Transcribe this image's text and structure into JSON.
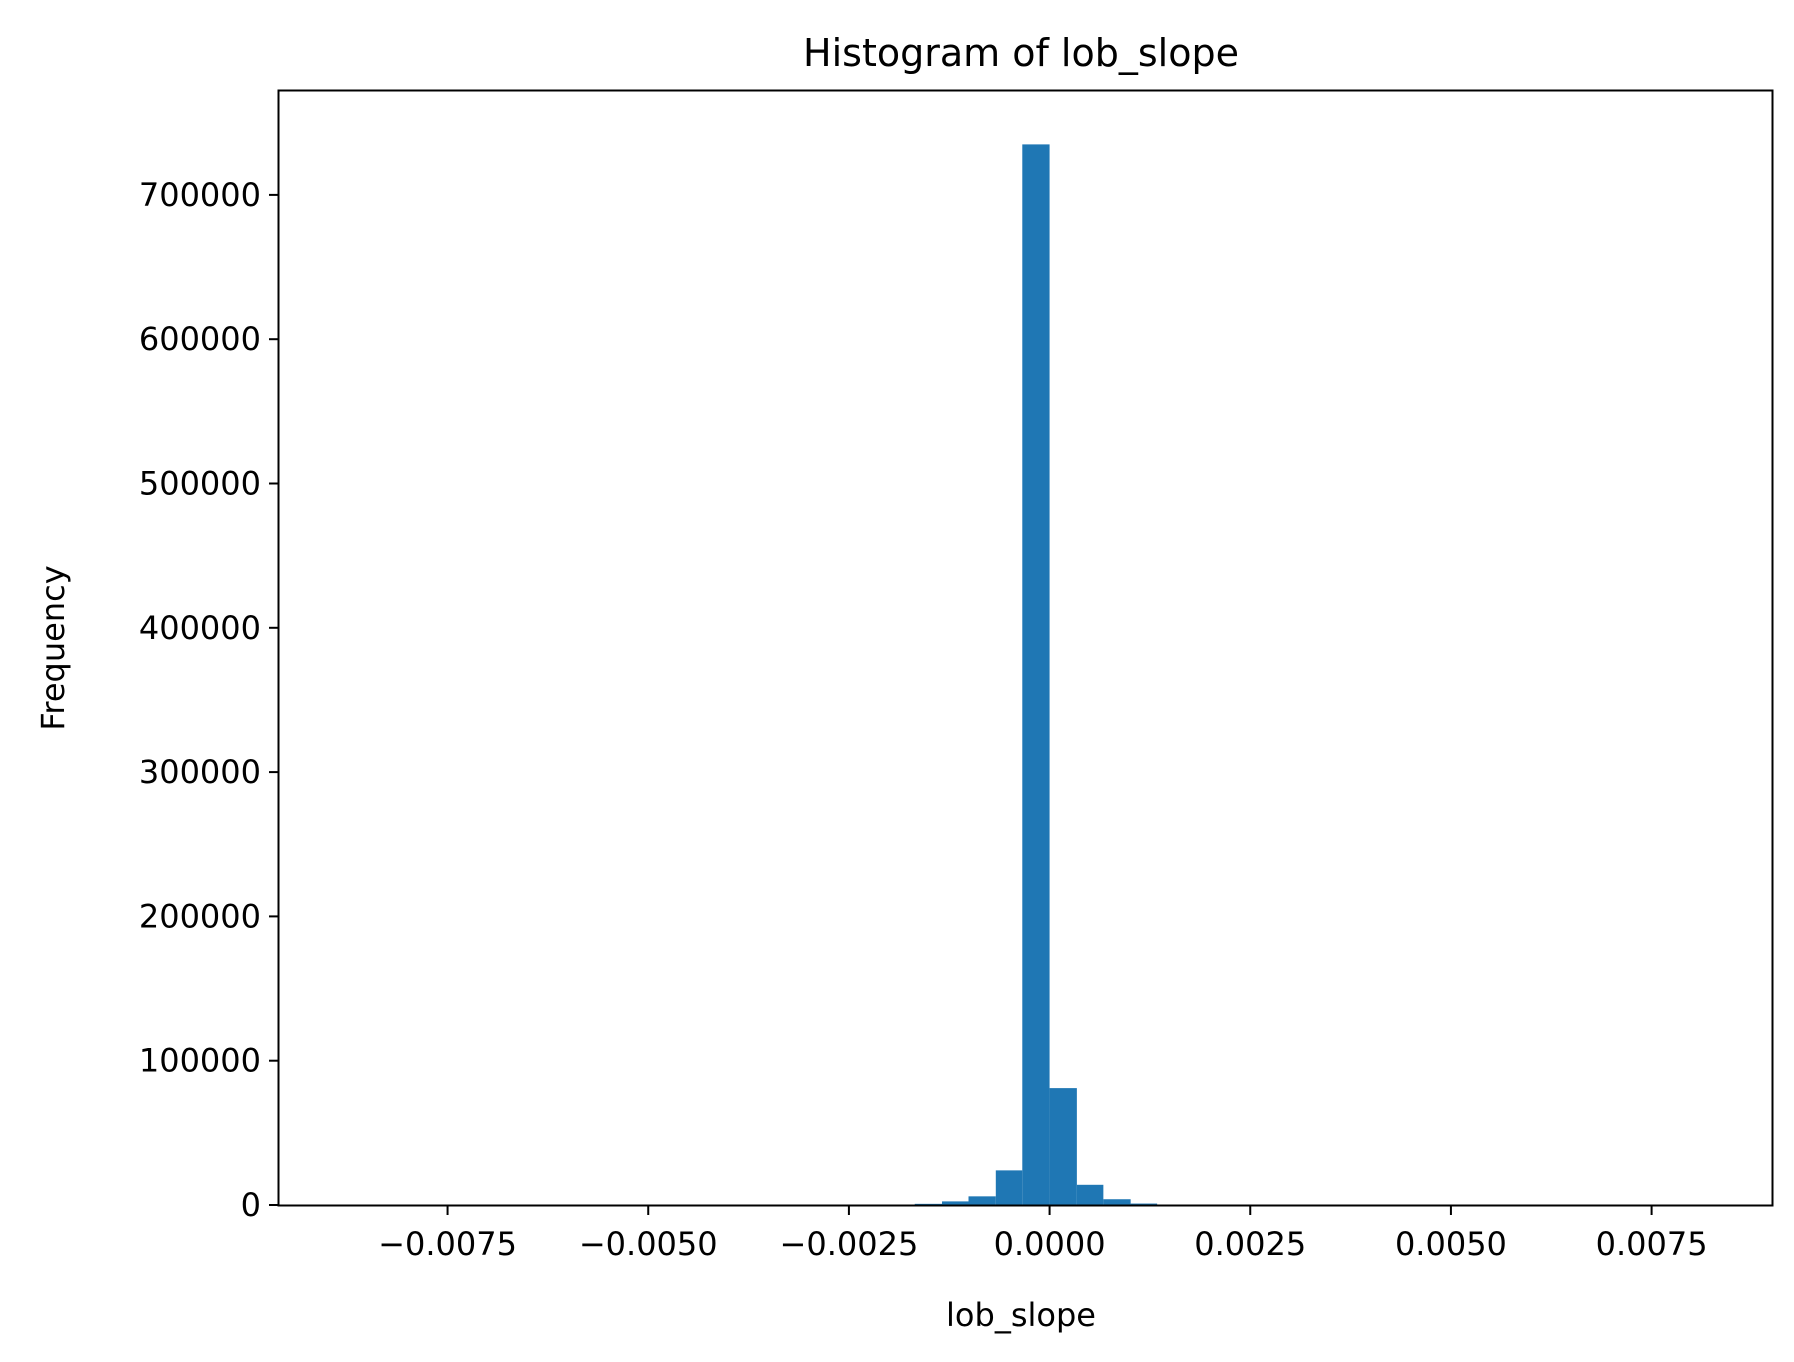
{
  "chart_data": {
    "type": "bar",
    "title": "Histogram of lob_slope",
    "xlabel": "lob_slope",
    "ylabel": "Frequency",
    "xlim": [
      -0.0096,
      0.009
    ],
    "ylim": [
      0,
      772000
    ],
    "xticks": [
      {
        "value": -0.0075,
        "label": "−0.0075"
      },
      {
        "value": -0.005,
        "label": "−0.0050"
      },
      {
        "value": -0.0025,
        "label": "−0.0025"
      },
      {
        "value": 0.0,
        "label": "0.0000"
      },
      {
        "value": 0.0025,
        "label": "0.0025"
      },
      {
        "value": 0.005,
        "label": "0.0050"
      },
      {
        "value": 0.0075,
        "label": "0.0075"
      }
    ],
    "yticks": [
      {
        "value": 0,
        "label": "0"
      },
      {
        "value": 100000,
        "label": "100000"
      },
      {
        "value": 200000,
        "label": "200000"
      },
      {
        "value": 300000,
        "label": "300000"
      },
      {
        "value": 400000,
        "label": "400000"
      },
      {
        "value": 500000,
        "label": "500000"
      },
      {
        "value": 600000,
        "label": "600000"
      },
      {
        "value": 700000,
        "label": "700000"
      }
    ],
    "bar_color": "#1f77b4",
    "bins": [
      {
        "x0": -0.00168,
        "x1": -0.00134,
        "count": 800
      },
      {
        "x0": -0.00134,
        "x1": -0.00101,
        "count": 2500
      },
      {
        "x0": -0.00101,
        "x1": -0.00067,
        "count": 6000
      },
      {
        "x0": -0.00067,
        "x1": -0.00034,
        "count": 24000
      },
      {
        "x0": -0.00034,
        "x1": 0.0,
        "count": 735000
      },
      {
        "x0": 0.0,
        "x1": 0.00034,
        "count": 81000
      },
      {
        "x0": 0.00034,
        "x1": 0.00067,
        "count": 14000
      },
      {
        "x0": 0.00067,
        "x1": 0.00101,
        "count": 4000
      },
      {
        "x0": 0.00101,
        "x1": 0.00134,
        "count": 1000
      }
    ],
    "grid": false,
    "legend": "none"
  }
}
